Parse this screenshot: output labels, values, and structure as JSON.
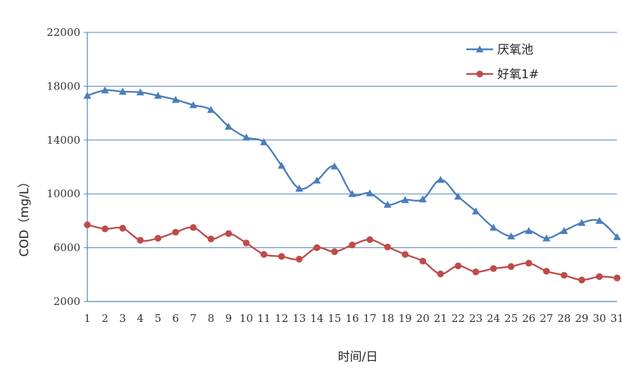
{
  "chart_data": {
    "type": "line",
    "title": "",
    "xlabel": "时间/日",
    "ylabel": "COD（mg/L）",
    "x": [
      1,
      2,
      3,
      4,
      5,
      6,
      7,
      8,
      9,
      10,
      11,
      12,
      13,
      14,
      15,
      16,
      17,
      18,
      19,
      20,
      21,
      22,
      23,
      24,
      25,
      26,
      27,
      28,
      29,
      30,
      31
    ],
    "x_tick_labels": [
      "1",
      "2",
      "3",
      "4",
      "5",
      "6",
      "7",
      "8",
      "9",
      "10",
      "11",
      "12",
      "13",
      "14",
      "15",
      "16",
      "17",
      "18",
      "19",
      "20",
      "21",
      "22",
      "23",
      "24",
      "25",
      "26",
      "27",
      "28",
      "29",
      "30",
      "31"
    ],
    "ylim": [
      2000,
      22000
    ],
    "y_ticks": [
      2000,
      6000,
      10000,
      14000,
      18000,
      22000
    ],
    "y_tick_labels": [
      "2000",
      "6000",
      "10000",
      "14000",
      "18000",
      "22000"
    ],
    "grid": true,
    "legend_position": "top-right",
    "series": [
      {
        "name": "厌氧池",
        "color": "#4a7ebb",
        "marker": "triangle",
        "values": [
          17300,
          17700,
          17600,
          17550,
          17300,
          17000,
          16600,
          16250,
          15000,
          14200,
          13850,
          12100,
          10400,
          11000,
          12050,
          10000,
          10050,
          9200,
          9550,
          9600,
          11050,
          9800,
          8700,
          7500,
          6850,
          7250,
          6700,
          7250,
          7850,
          8000,
          6800
        ]
      },
      {
        "name": "好氧1#",
        "color": "#be4b48",
        "marker": "circle",
        "values": [
          7700,
          7400,
          7450,
          6550,
          6700,
          7150,
          7500,
          6650,
          7050,
          6350,
          5500,
          5350,
          5150,
          6000,
          5700,
          6200,
          6600,
          6050,
          5500,
          5000,
          4050,
          4650,
          4200,
          4450,
          4600,
          4850,
          4250,
          3950,
          3600,
          3850,
          3750
        ]
      }
    ]
  }
}
